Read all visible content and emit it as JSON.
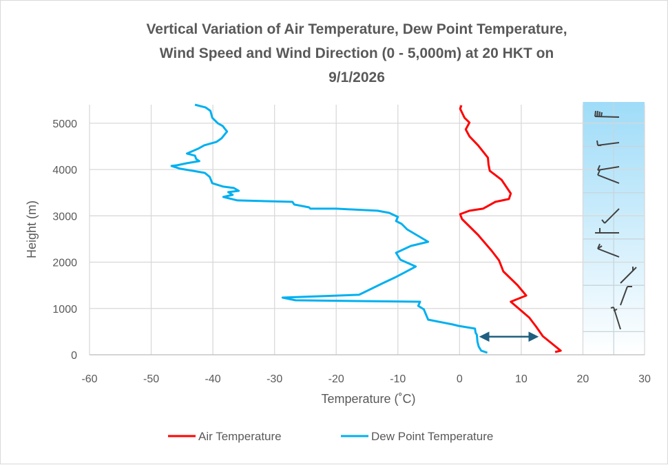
{
  "chart_data": {
    "type": "line",
    "title_lines": [
      "Vertical Variation of Air Temperature, Dew Point Temperature,",
      "Wind Speed and Wind Direction (0 - 5,000m) at 20 HKT on",
      "9/1/2026"
    ],
    "xlabel": "Temperature (˚C)",
    "ylabel": "Height (m)",
    "xlim": [
      -60,
      30
    ],
    "ylim": [
      0,
      5400
    ],
    "xticks": [
      -60,
      -50,
      -40,
      -30,
      -20,
      -10,
      0,
      10,
      20,
      30
    ],
    "yticks": [
      0,
      1000,
      2000,
      3000,
      4000,
      5000
    ],
    "grid": true,
    "legend_position": "bottom",
    "series": [
      {
        "name": "Air Temperature",
        "color": "#ff0000",
        "points": [
          [
            0.3,
            5387
          ],
          [
            0.1,
            5312
          ],
          [
            0.8,
            5119
          ],
          [
            1.6,
            5015
          ],
          [
            1.0,
            4866
          ],
          [
            1.6,
            4717
          ],
          [
            3.0,
            4524
          ],
          [
            4.6,
            4256
          ],
          [
            4.7,
            4107
          ],
          [
            4.9,
            3973
          ],
          [
            6.8,
            3780
          ],
          [
            8.3,
            3482
          ],
          [
            8.0,
            3363
          ],
          [
            5.8,
            3303
          ],
          [
            3.8,
            3155
          ],
          [
            1.6,
            3110
          ],
          [
            0.1,
            3036
          ],
          [
            0.4,
            2931
          ],
          [
            3.0,
            2589
          ],
          [
            5.2,
            2247
          ],
          [
            6.4,
            2039
          ],
          [
            7.1,
            1800
          ],
          [
            9.4,
            1503
          ],
          [
            10.8,
            1280
          ],
          [
            8.3,
            1146
          ],
          [
            11.3,
            804
          ],
          [
            12.4,
            610
          ],
          [
            13.5,
            402
          ],
          [
            16.4,
            89
          ],
          [
            15.5,
            60
          ]
        ]
      },
      {
        "name": "Dew Point Temperature",
        "color": "#00b0f0",
        "points": [
          [
            -42.9,
            5400
          ],
          [
            -41.2,
            5342
          ],
          [
            -40.4,
            5268
          ],
          [
            -40.1,
            5119
          ],
          [
            -39.2,
            5000
          ],
          [
            -38.4,
            4940
          ],
          [
            -37.7,
            4821
          ],
          [
            -38.6,
            4672
          ],
          [
            -39.4,
            4598
          ],
          [
            -41.4,
            4524
          ],
          [
            -42.4,
            4449
          ],
          [
            -44.2,
            4345
          ],
          [
            -42.9,
            4300
          ],
          [
            -42.7,
            4226
          ],
          [
            -42.2,
            4181
          ],
          [
            -44.2,
            4137
          ],
          [
            -45.8,
            4092
          ],
          [
            -46.7,
            4077
          ],
          [
            -45.3,
            4018
          ],
          [
            -43.3,
            3973
          ],
          [
            -41.3,
            3928
          ],
          [
            -40.5,
            3839
          ],
          [
            -40.1,
            3705
          ],
          [
            -38.3,
            3631
          ],
          [
            -36.6,
            3601
          ],
          [
            -35.8,
            3541
          ],
          [
            -37.5,
            3512
          ],
          [
            -36.8,
            3452
          ],
          [
            -38.3,
            3408
          ],
          [
            -36.0,
            3333
          ],
          [
            -27.1,
            3303
          ],
          [
            -26.8,
            3244
          ],
          [
            -24.4,
            3184
          ],
          [
            -24.2,
            3155
          ],
          [
            -20.0,
            3155
          ],
          [
            -13.3,
            3110
          ],
          [
            -11.4,
            3065
          ],
          [
            -10.0,
            2976
          ],
          [
            -10.3,
            2887
          ],
          [
            -9.4,
            2827
          ],
          [
            -8.5,
            2708
          ],
          [
            -5.1,
            2440
          ],
          [
            -7.9,
            2351
          ],
          [
            -10.3,
            2202
          ],
          [
            -9.6,
            2053
          ],
          [
            -7.1,
            1905
          ],
          [
            -9.0,
            1771
          ],
          [
            -10.5,
            1667
          ],
          [
            -12.4,
            1548
          ],
          [
            -16.3,
            1295
          ],
          [
            -28.7,
            1235
          ],
          [
            -26.6,
            1176
          ],
          [
            -6.4,
            1146
          ],
          [
            -6.7,
            1056
          ],
          [
            -5.8,
            982
          ],
          [
            -5.1,
            759
          ],
          [
            -1.1,
            655
          ],
          [
            -0.2,
            625
          ],
          [
            2.5,
            565
          ],
          [
            2.6,
            476
          ],
          [
            2.8,
            432
          ],
          [
            2.9,
            283
          ],
          [
            3.1,
            179
          ],
          [
            3.5,
            89
          ],
          [
            4.5,
            45
          ]
        ]
      }
    ],
    "annotation_arrow": {
      "from": [
        3,
        450
      ],
      "to": [
        13,
        450
      ],
      "color": "#1f5f80"
    },
    "wind_panel": {
      "x_range": [
        20,
        30
      ],
      "shade_top": "#9fdcf8",
      "shade_bottom": "#ffffff",
      "barb_color": "#404040"
    }
  }
}
